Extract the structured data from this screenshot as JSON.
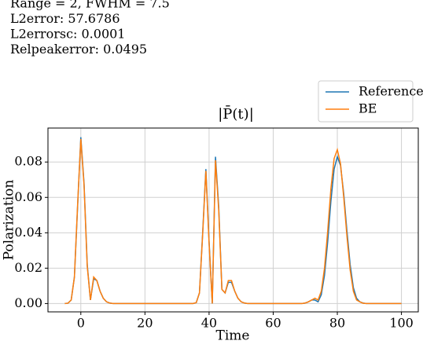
{
  "chart_data": {
    "type": "line",
    "annotations": [
      "Range = 2, FWHM = 7.5",
      "L2error: 57.6786",
      "L2errorsc: 0.0001",
      "Relpeakerror: 0.0495"
    ],
    "title": "|P̄(t)|",
    "xlabel": "Time",
    "ylabel": "Polarization",
    "x": [
      -5,
      -4,
      -3,
      -2,
      -1,
      0,
      1,
      2,
      3,
      4,
      5,
      6,
      7,
      8,
      9,
      10,
      11,
      12,
      13,
      14,
      15,
      16,
      17,
      18,
      19,
      20,
      21,
      22,
      23,
      24,
      25,
      26,
      27,
      28,
      29,
      30,
      31,
      32,
      33,
      34,
      35,
      36,
      37,
      38,
      39,
      40,
      41,
      42,
      43,
      44,
      45,
      46,
      47,
      48,
      49,
      50,
      51,
      52,
      53,
      54,
      55,
      56,
      57,
      58,
      59,
      60,
      61,
      62,
      63,
      64,
      65,
      66,
      67,
      68,
      69,
      70,
      71,
      72,
      73,
      74,
      75,
      76,
      77,
      78,
      79,
      80,
      81,
      82,
      83,
      84,
      85,
      86,
      87,
      88,
      89,
      90,
      91,
      92,
      93,
      94,
      95,
      96,
      97,
      98,
      99,
      100
    ],
    "series": [
      {
        "name": "Reference",
        "color": "#1f77b4",
        "values": [
          0,
          0.0002,
          0.002,
          0.015,
          0.055,
          0.094,
          0.068,
          0.022,
          0.002,
          0.014,
          0.013,
          0.007,
          0.003,
          0.001,
          0.0003,
          0,
          0,
          0,
          0,
          0,
          0,
          0,
          0,
          0,
          0,
          0,
          0,
          0,
          0,
          0,
          0,
          0,
          0,
          0,
          0,
          0,
          0,
          0,
          0,
          0,
          0,
          0.0005,
          0.006,
          0.04,
          0.076,
          0.035,
          0,
          0.083,
          0.055,
          0.008,
          0.006,
          0.012,
          0.012,
          0.007,
          0.003,
          0.001,
          0.0003,
          0,
          0,
          0,
          0,
          0,
          0,
          0,
          0,
          0,
          0,
          0,
          0,
          0,
          0,
          0,
          0,
          0,
          0,
          0.0003,
          0.001,
          0.002,
          0.002,
          0.001,
          0.005,
          0.016,
          0.035,
          0.058,
          0.076,
          0.083,
          0.078,
          0.062,
          0.041,
          0.022,
          0.009,
          0.003,
          0.001,
          0.0003,
          0,
          0,
          0,
          0,
          0,
          0,
          0,
          0,
          0,
          0,
          0,
          0
        ]
      },
      {
        "name": "BE",
        "color": "#ff7f0e",
        "values": [
          0,
          0.0002,
          0.002,
          0.015,
          0.056,
          0.093,
          0.067,
          0.021,
          0.002,
          0.015,
          0.013,
          0.007,
          0.003,
          0.001,
          0.0003,
          0,
          0,
          0,
          0,
          0,
          0,
          0,
          0,
          0,
          0,
          0,
          0,
          0,
          0,
          0,
          0,
          0,
          0,
          0,
          0,
          0,
          0,
          0,
          0,
          0,
          0,
          0.0005,
          0.006,
          0.039,
          0.075,
          0.034,
          0,
          0.081,
          0.053,
          0.008,
          0.006,
          0.013,
          0.013,
          0.007,
          0.003,
          0.001,
          0.0003,
          0,
          0,
          0,
          0,
          0,
          0,
          0,
          0,
          0,
          0,
          0,
          0,
          0,
          0,
          0,
          0,
          0,
          0,
          0.0003,
          0.001,
          0.002,
          0.003,
          0.002,
          0.007,
          0.02,
          0.041,
          0.065,
          0.082,
          0.087,
          0.079,
          0.06,
          0.038,
          0.019,
          0.007,
          0.002,
          0.001,
          0.0002,
          0,
          0,
          0,
          0,
          0,
          0,
          0,
          0,
          0,
          0,
          0,
          0
        ]
      }
    ],
    "xlim": [
      -10.25,
      105.25
    ],
    "xticks": [
      0,
      20,
      40,
      60,
      80,
      100
    ],
    "ylim": [
      -0.0047,
      0.0992
    ],
    "yticks": [
      {
        "value": 0,
        "label": "0.00"
      },
      {
        "value": 0.02,
        "label": "0.02"
      },
      {
        "value": 0.04,
        "label": "0.04"
      },
      {
        "value": 0.06,
        "label": "0.06"
      },
      {
        "value": 0.08,
        "label": "0.08"
      }
    ],
    "grid": true,
    "legend": "upper right"
  }
}
